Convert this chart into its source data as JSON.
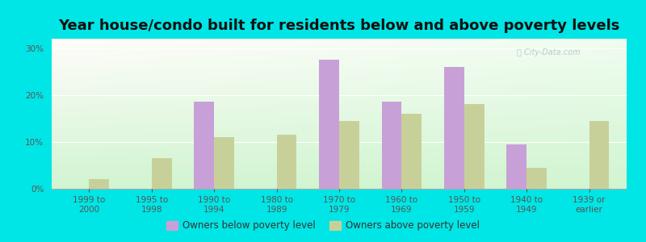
{
  "title": "Year house/condo built for residents below and above poverty levels",
  "categories": [
    "1999 to\n2000",
    "1995 to\n1998",
    "1990 to\n1994",
    "1980 to\n1989",
    "1970 to\n1979",
    "1960 to\n1969",
    "1950 to\n1959",
    "1940 to\n1949",
    "1939 or\nearlier"
  ],
  "below_poverty": [
    0,
    0,
    18.5,
    0,
    27.5,
    18.5,
    26.0,
    9.5,
    0
  ],
  "above_poverty": [
    2.0,
    6.5,
    11.0,
    11.5,
    14.5,
    16.0,
    18.0,
    4.5,
    14.5
  ],
  "below_color": "#c8a0d8",
  "above_color": "#c8d09a",
  "outer_background": "#00e5e5",
  "ylim": [
    0,
    32
  ],
  "yticks": [
    0,
    10,
    20,
    30
  ],
  "ytick_labels": [
    "0%",
    "10%",
    "20%",
    "30%"
  ],
  "legend_below": "Owners below poverty level",
  "legend_above": "Owners above poverty level",
  "title_fontsize": 13,
  "tick_fontsize": 7.5
}
